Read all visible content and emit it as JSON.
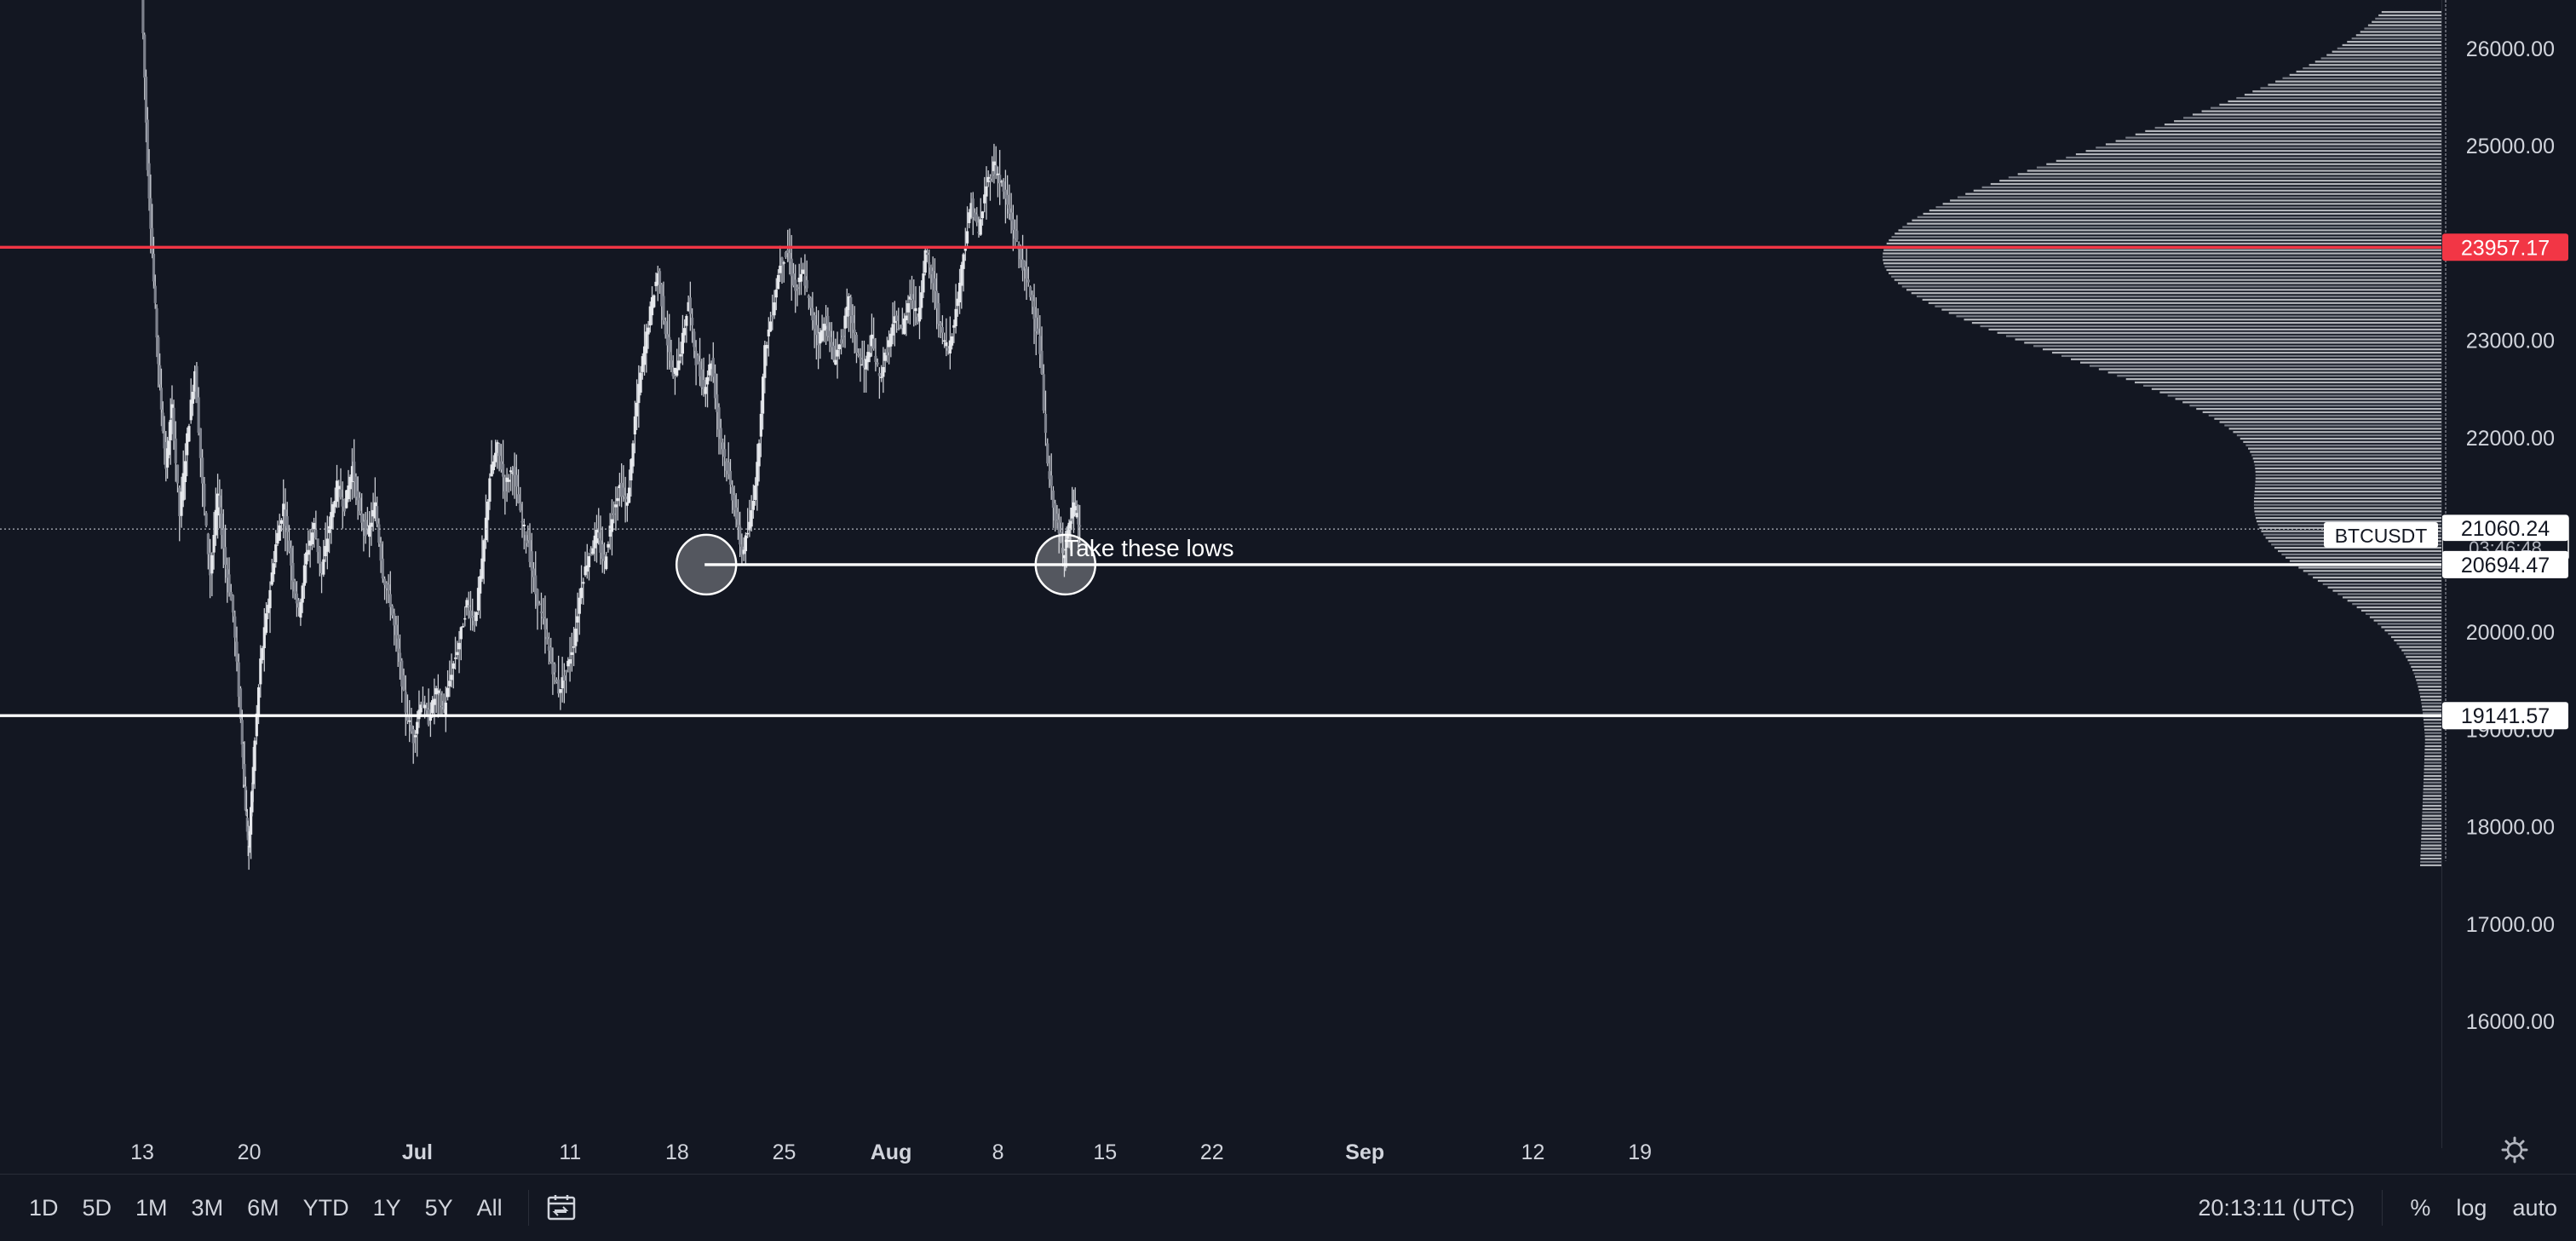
{
  "chart_data": {
    "type": "candlestick",
    "symbol": "BTCUSDT",
    "y_ticks": [
      26000,
      25000,
      24000,
      23000,
      22000,
      21000,
      20000,
      19000,
      18000,
      17000,
      16000
    ],
    "y_tick_labels": [
      "26000.00",
      "25000.00",
      "24000.00",
      "23000.00",
      "22000.00",
      "21000.00",
      "20000.00",
      "19000.00",
      "18000.00",
      "17000.00",
      "16000.00"
    ],
    "ylim": [
      15000,
      26550
    ],
    "x_tick_labels": [
      {
        "label": "13",
        "day": 0
      },
      {
        "label": "20",
        "day": 7
      },
      {
        "label": "Jul",
        "day": 18,
        "bold": true
      },
      {
        "label": "11",
        "day": 28
      },
      {
        "label": "18",
        "day": 35
      },
      {
        "label": "25",
        "day": 42
      },
      {
        "label": "Aug",
        "day": 49,
        "bold": true
      },
      {
        "label": "8",
        "day": 56
      },
      {
        "label": "15",
        "day": 63
      },
      {
        "label": "22",
        "day": 70
      },
      {
        "label": "Sep",
        "day": 80,
        "bold": true
      },
      {
        "label": "12",
        "day": 91
      },
      {
        "label": "19",
        "day": 98
      }
    ],
    "price_path": [
      [
        0,
        26600
      ],
      [
        0.4,
        24800
      ],
      [
        0.8,
        23600
      ],
      [
        1.2,
        22500
      ],
      [
        1.6,
        21700
      ],
      [
        2,
        22300
      ],
      [
        2.5,
        21200
      ],
      [
        3,
        22000
      ],
      [
        3.5,
        22700
      ],
      [
        4,
        21500
      ],
      [
        4.5,
        20600
      ],
      [
        5,
        21400
      ],
      [
        5.5,
        20700
      ],
      [
        6,
        20200
      ],
      [
        6.5,
        19100
      ],
      [
        6.8,
        18200
      ],
      [
        7,
        17750
      ],
      [
        7.3,
        18600
      ],
      [
        7.8,
        19700
      ],
      [
        8.3,
        20300
      ],
      [
        8.8,
        20900
      ],
      [
        9.3,
        21300
      ],
      [
        9.8,
        20700
      ],
      [
        10.3,
        20200
      ],
      [
        10.8,
        20800
      ],
      [
        11.3,
        21100
      ],
      [
        11.8,
        20600
      ],
      [
        12.3,
        21100
      ],
      [
        12.8,
        21500
      ],
      [
        13.3,
        21300
      ],
      [
        13.8,
        21700
      ],
      [
        14.3,
        21200
      ],
      [
        14.8,
        21000
      ],
      [
        15.3,
        21300
      ],
      [
        15.8,
        20600
      ],
      [
        16.3,
        20300
      ],
      [
        16.8,
        19800
      ],
      [
        17.3,
        19200
      ],
      [
        17.8,
        18900
      ],
      [
        18.3,
        19300
      ],
      [
        18.8,
        19100
      ],
      [
        19.3,
        19400
      ],
      [
        19.8,
        19200
      ],
      [
        20.3,
        19600
      ],
      [
        20.8,
        19900
      ],
      [
        21.3,
        20300
      ],
      [
        21.8,
        20100
      ],
      [
        22.3,
        20700
      ],
      [
        22.8,
        21600
      ],
      [
        23.3,
        21900
      ],
      [
        23.8,
        21500
      ],
      [
        24.3,
        21700
      ],
      [
        24.8,
        21200
      ],
      [
        25.3,
        20900
      ],
      [
        25.8,
        20400
      ],
      [
        26.3,
        20100
      ],
      [
        26.8,
        19700
      ],
      [
        27.3,
        19400
      ],
      [
        27.8,
        19600
      ],
      [
        28.3,
        19900
      ],
      [
        28.8,
        20500
      ],
      [
        29.3,
        20800
      ],
      [
        29.8,
        21000
      ],
      [
        30.3,
        20700
      ],
      [
        30.8,
        21200
      ],
      [
        31.3,
        21500
      ],
      [
        31.8,
        21300
      ],
      [
        32.3,
        22200
      ],
      [
        32.8,
        22800
      ],
      [
        33.3,
        23300
      ],
      [
        33.8,
        23700
      ],
      [
        34.3,
        23100
      ],
      [
        34.8,
        22600
      ],
      [
        35.3,
        22900
      ],
      [
        35.8,
        23400
      ],
      [
        36.3,
        22800
      ],
      [
        36.8,
        22500
      ],
      [
        37.3,
        22800
      ],
      [
        37.8,
        22100
      ],
      [
        38.3,
        21700
      ],
      [
        38.8,
        21300
      ],
      [
        39.3,
        20800
      ],
      [
        39.8,
        21100
      ],
      [
        40.3,
        21700
      ],
      [
        40.8,
        22900
      ],
      [
        41.3,
        23300
      ],
      [
        41.8,
        23800
      ],
      [
        42.3,
        23900
      ],
      [
        42.8,
        23500
      ],
      [
        43.3,
        23700
      ],
      [
        43.8,
        23300
      ],
      [
        44.3,
        23000
      ],
      [
        44.8,
        23200
      ],
      [
        45.3,
        22800
      ],
      [
        45.8,
        23000
      ],
      [
        46.3,
        23400
      ],
      [
        46.8,
        22900
      ],
      [
        47.3,
        22700
      ],
      [
        47.8,
        23000
      ],
      [
        48.3,
        22600
      ],
      [
        48.8,
        22900
      ],
      [
        49.3,
        23200
      ],
      [
        49.8,
        23100
      ],
      [
        50.3,
        23500
      ],
      [
        50.8,
        23200
      ],
      [
        51.3,
        23900
      ],
      [
        51.8,
        23600
      ],
      [
        52.3,
        23100
      ],
      [
        52.8,
        22900
      ],
      [
        53.3,
        23300
      ],
      [
        53.8,
        23900
      ],
      [
        54.3,
        24400
      ],
      [
        54.8,
        24100
      ],
      [
        55.3,
        24600
      ],
      [
        55.8,
        24800
      ],
      [
        56.3,
        24600
      ],
      [
        56.8,
        24300
      ],
      [
        57.3,
        24000
      ],
      [
        57.8,
        23700
      ],
      [
        58.3,
        23400
      ],
      [
        58.8,
        22900
      ],
      [
        59.3,
        21700
      ],
      [
        59.8,
        21200
      ],
      [
        60.3,
        20800
      ],
      [
        60.6,
        21000
      ],
      [
        61,
        21300
      ],
      [
        61.4,
        21060
      ]
    ],
    "levels": [
      {
        "label": "23957.17",
        "price": 23957.17,
        "color": "#f23645"
      },
      {
        "label": "20694.47",
        "price": 20694.47,
        "color": "#ffffff",
        "start_day": 36.8
      },
      {
        "label": "19141.57",
        "price": 19141.57,
        "color": "#ffffff"
      }
    ],
    "last_price": {
      "label": "21060.24",
      "price": 21060.24,
      "countdown": "03:46:48"
    },
    "marked_lows": [
      {
        "day": 36.8,
        "price": 20694.47
      },
      {
        "day": 60.3,
        "price": 20694.47
      }
    ],
    "annotation": {
      "text": "Take these lows",
      "day": 62,
      "price": 20850
    },
    "volume_profile": {
      "peak_price": 23950,
      "spread": 1650
    }
  },
  "bottom_bar": {
    "ranges": [
      "1D",
      "5D",
      "1M",
      "3M",
      "6M",
      "YTD",
      "1Y",
      "5Y",
      "All"
    ],
    "time": "20:13:11 (UTC)",
    "percent": "%",
    "log": "log",
    "auto": "auto"
  },
  "colors": {
    "background": "#131722",
    "red_line": "#f23645",
    "text": "#d1d4dc"
  }
}
